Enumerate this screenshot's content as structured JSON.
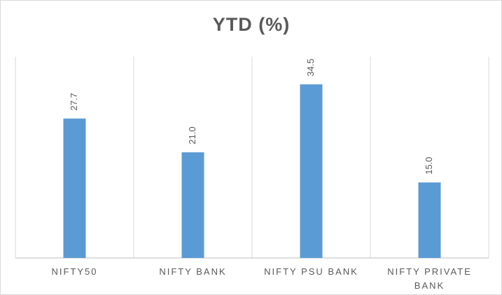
{
  "chart_data": {
    "type": "bar",
    "title": "YTD (%)",
    "categories": [
      "NIFTY50",
      "NIFTY BANK",
      "NIFTY PSU BANK",
      "NIFTY PRIVATE BANK"
    ],
    "values": [
      27.7,
      21.0,
      34.5,
      15.0
    ],
    "value_labels": [
      "27.7",
      "21.0",
      "34.5",
      "15.0"
    ],
    "color": "#5b9bd5",
    "ylim": [
      0,
      40
    ]
  }
}
